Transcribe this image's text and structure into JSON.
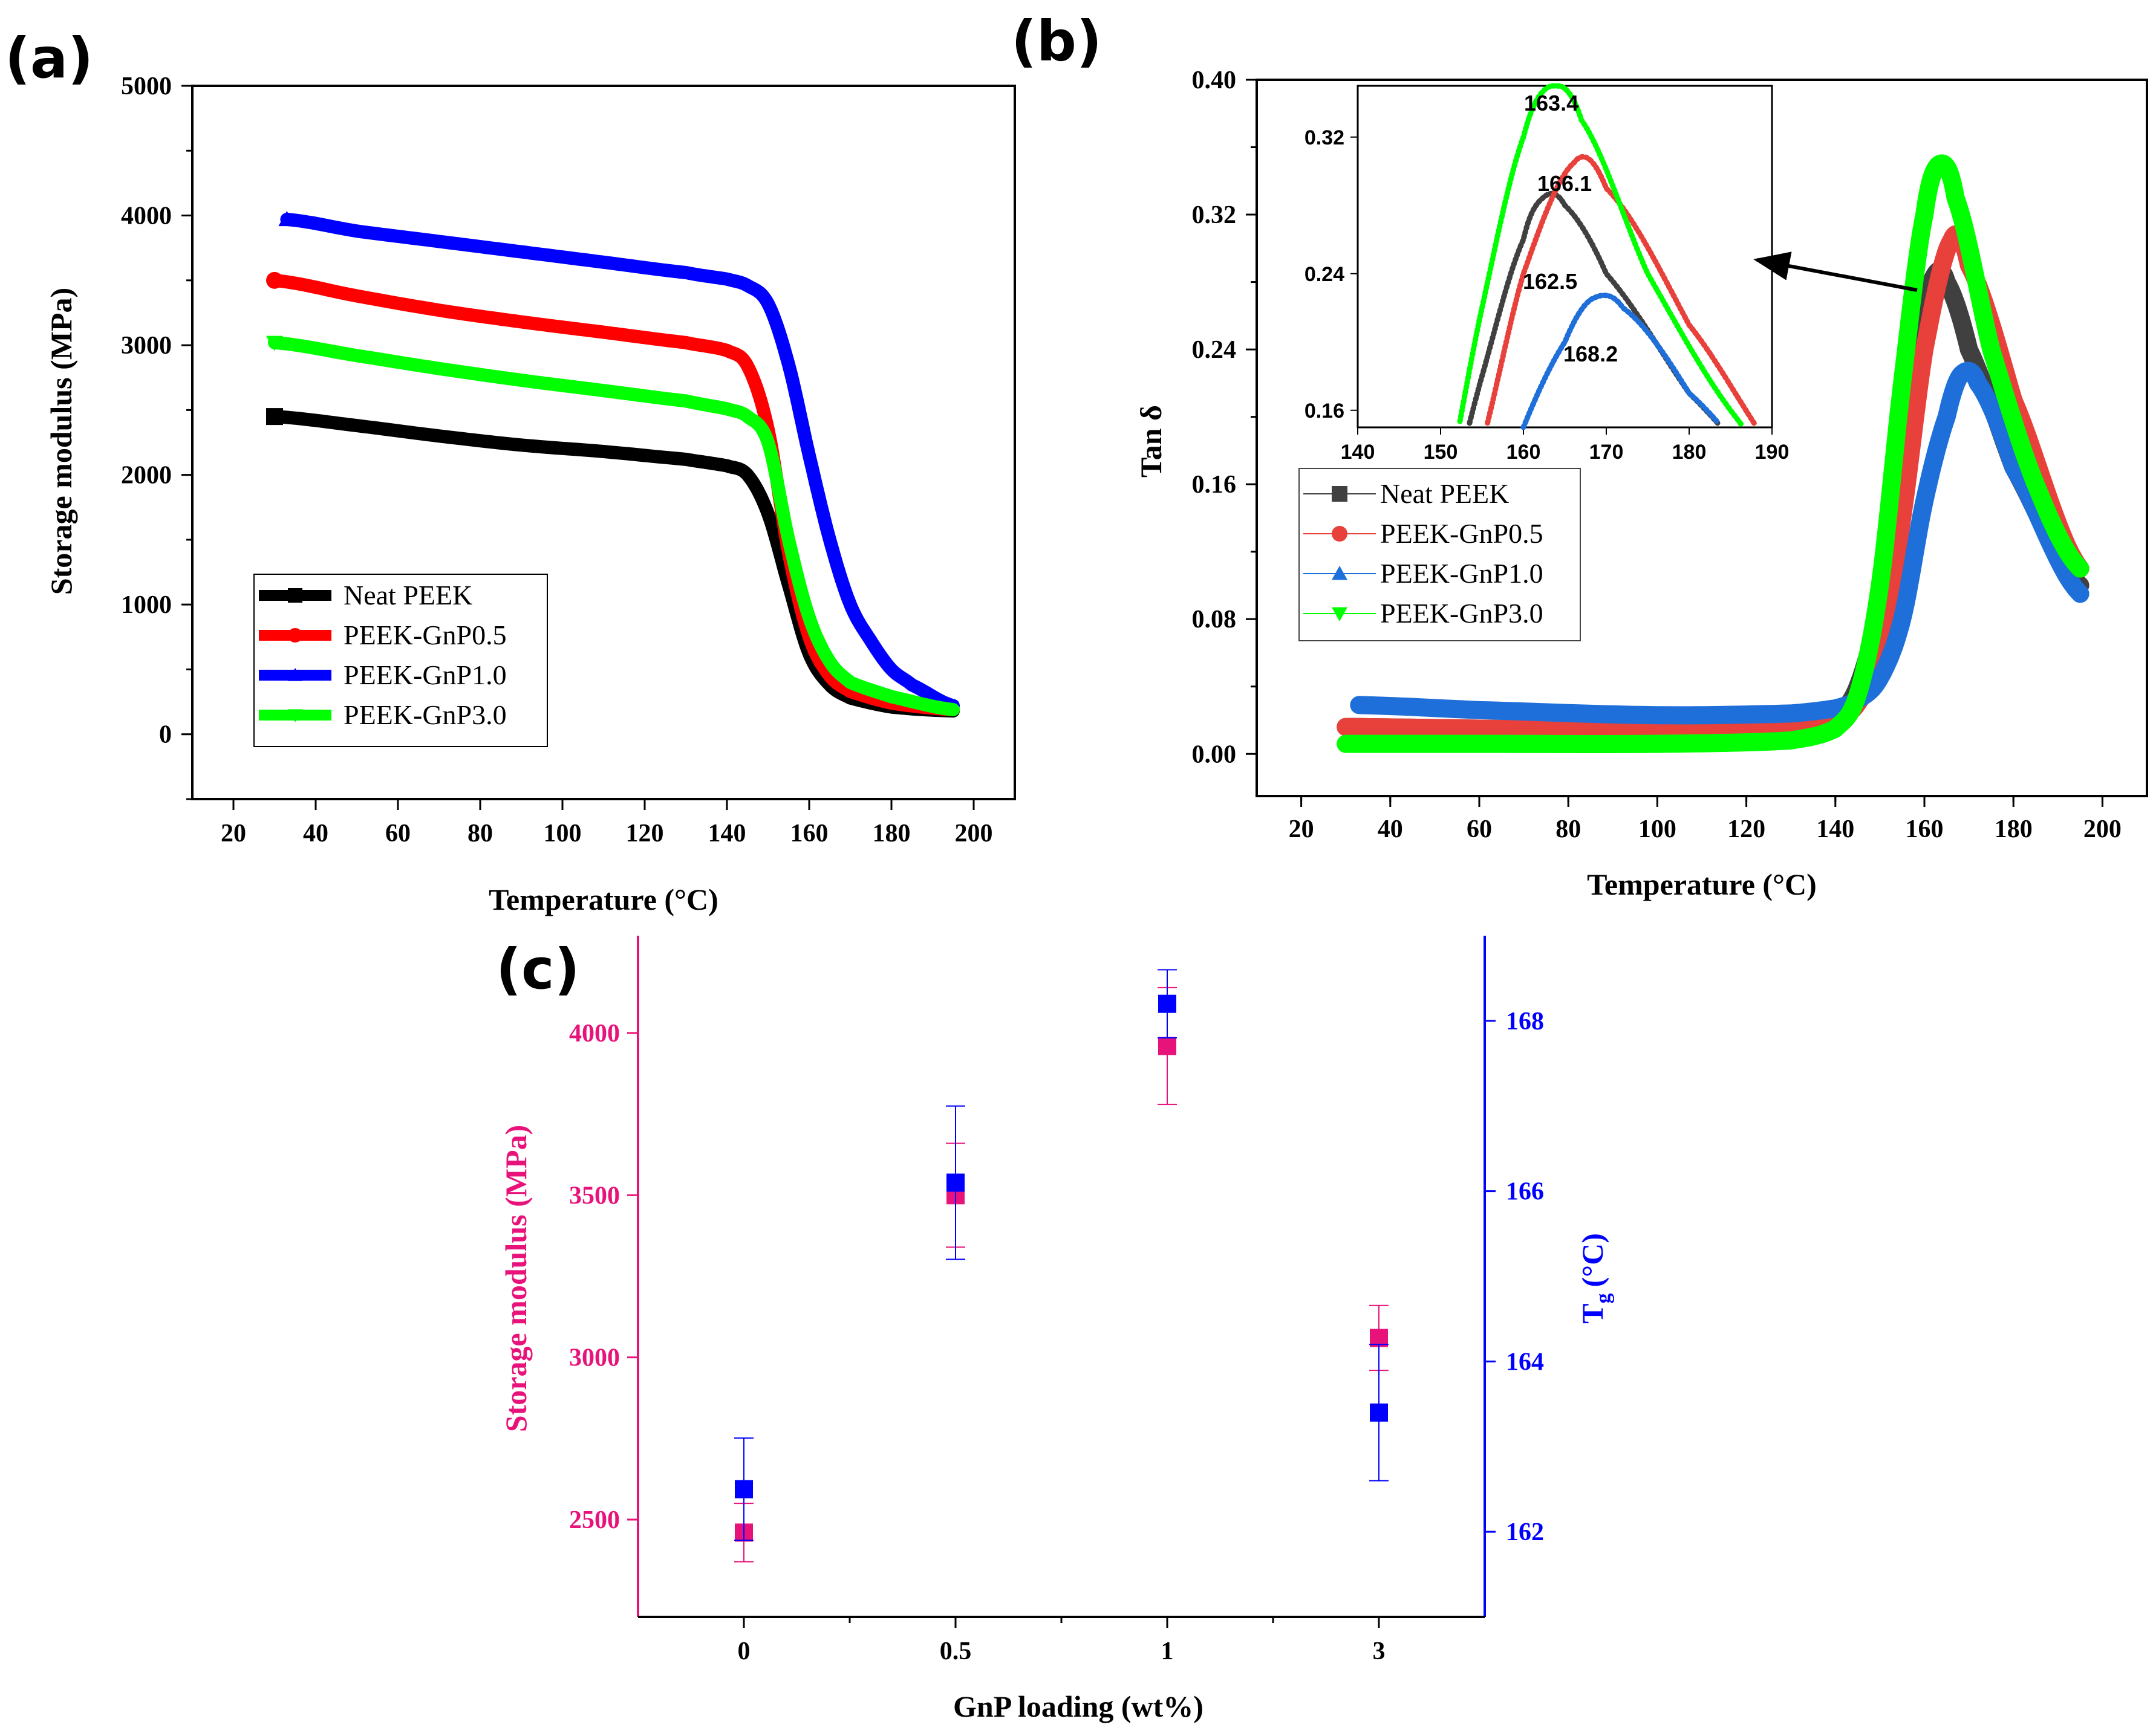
{
  "chart_data": [
    {
      "type": "line",
      "panel": "(a)",
      "xlabel": "Temperature (°C)",
      "ylabel": "Storage modulus (MPa)",
      "xlim": [
        10,
        210
      ],
      "ylim": [
        -500,
        5000
      ],
      "xticks": [
        20,
        40,
        60,
        80,
        100,
        120,
        140,
        160,
        180,
        200
      ],
      "yticks": [
        0,
        1000,
        2000,
        3000,
        4000,
        5000
      ],
      "legend_position": "bottom-left",
      "series": [
        {
          "name": "Neat PEEK",
          "color": "#000000",
          "marker": "square",
          "x": [
            30,
            50,
            70,
            90,
            110,
            130,
            140,
            145,
            150,
            155,
            160,
            165,
            170,
            180,
            195
          ],
          "y": [
            2450,
            2380,
            2300,
            2230,
            2180,
            2120,
            2070,
            2000,
            1700,
            1150,
            620,
            380,
            280,
            210,
            180
          ]
        },
        {
          "name": "PEEK-GnP0.5",
          "color": "#ff0000",
          "marker": "circle",
          "x": [
            30,
            50,
            70,
            90,
            110,
            130,
            140,
            145,
            150,
            155,
            160,
            165,
            170,
            180,
            195
          ],
          "y": [
            3500,
            3380,
            3270,
            3180,
            3100,
            3020,
            2960,
            2840,
            2350,
            1400,
            750,
            450,
            330,
            240,
            190
          ]
        },
        {
          "name": "PEEK-GnP1.0",
          "color": "#0000ff",
          "marker": "triangle-up",
          "x": [
            33,
            50,
            70,
            90,
            110,
            130,
            140,
            145,
            150,
            155,
            160,
            165,
            170,
            175,
            180,
            185,
            195
          ],
          "y": [
            3970,
            3880,
            3800,
            3720,
            3640,
            3560,
            3510,
            3460,
            3320,
            2850,
            2150,
            1500,
            1000,
            720,
            500,
            380,
            220
          ]
        },
        {
          "name": "PEEK-GnP3.0",
          "color": "#00ff00",
          "marker": "triangle-down",
          "x": [
            30,
            50,
            70,
            90,
            110,
            130,
            140,
            145,
            150,
            155,
            160,
            165,
            170,
            180,
            195
          ],
          "y": [
            3020,
            2920,
            2820,
            2730,
            2650,
            2570,
            2510,
            2450,
            2250,
            1500,
            900,
            560,
            400,
            290,
            190
          ]
        }
      ]
    },
    {
      "type": "line",
      "panel": "(b)",
      "xlabel": "Temperature (°C)",
      "ylabel": "Tan δ",
      "xlim": [
        10,
        210
      ],
      "ylim": [
        -0.025,
        0.4
      ],
      "xticks": [
        20,
        40,
        60,
        80,
        100,
        120,
        140,
        160,
        180,
        200
      ],
      "yticks": [
        0.0,
        0.08,
        0.16,
        0.24,
        0.32,
        0.4
      ],
      "ytick_labels": [
        "0.00",
        "0.08",
        "0.16",
        "0.24",
        "0.32",
        "0.40"
      ],
      "legend_position": "middle-left",
      "series": [
        {
          "name": "Neat PEEK",
          "color": "#404040",
          "marker": "square",
          "x": [
            30,
            60,
            100,
            130,
            140,
            145,
            150,
            155,
            160,
            162.5,
            165,
            170,
            180,
            195
          ],
          "y": [
            0.016,
            0.015,
            0.014,
            0.015,
            0.022,
            0.04,
            0.09,
            0.18,
            0.26,
            0.285,
            0.28,
            0.24,
            0.17,
            0.1
          ]
        },
        {
          "name": "PEEK-GnP0.5",
          "color": "#e8403a",
          "marker": "circle",
          "x": [
            30,
            60,
            100,
            130,
            140,
            145,
            150,
            155,
            160,
            166.1,
            170,
            180,
            195
          ],
          "y": [
            0.016,
            0.015,
            0.014,
            0.016,
            0.02,
            0.03,
            0.06,
            0.14,
            0.24,
            0.305,
            0.29,
            0.21,
            0.11
          ]
        },
        {
          "name": "PEEK-GnP1.0",
          "color": "#1e6fd9",
          "marker": "triangle-up",
          "x": [
            33,
            60,
            100,
            130,
            140,
            145,
            150,
            155,
            160,
            165,
            168.2,
            172,
            180,
            195
          ],
          "y": [
            0.029,
            0.026,
            0.023,
            0.024,
            0.027,
            0.032,
            0.045,
            0.08,
            0.15,
            0.2,
            0.225,
            0.22,
            0.17,
            0.095
          ]
        },
        {
          "name": "PEEK-GnP3.0",
          "color": "#00ff00",
          "marker": "triangle-down",
          "x": [
            30,
            60,
            100,
            130,
            140,
            145,
            150,
            155,
            160,
            163.4,
            167,
            175,
            185,
            195
          ],
          "y": [
            0.006,
            0.006,
            0.006,
            0.008,
            0.015,
            0.035,
            0.1,
            0.22,
            0.32,
            0.35,
            0.33,
            0.24,
            0.16,
            0.11
          ]
        }
      ],
      "inset": {
        "xlim": [
          140,
          190
        ],
        "ylim": [
          0.15,
          0.35
        ],
        "xticks": [
          140,
          150,
          160,
          170,
          180,
          190
        ],
        "yticks": [
          0.16,
          0.24,
          0.32
        ],
        "ytick_labels": [
          "0.16",
          "0.24",
          "0.32"
        ],
        "peak_labels": [
          "163.4",
          "166.1",
          "162.5",
          "168.2"
        ]
      }
    },
    {
      "type": "scatter",
      "panel": "(c)",
      "xlabel": "GnP loading (wt%)",
      "ylabel_left": "Storage modulus (MPa)",
      "ylabel_right": "Tg (°C)",
      "ylabel_right_main": "T",
      "ylabel_right_sub": "g",
      "ylabel_right_unit": "(°C)",
      "categories": [
        "0",
        "0.5",
        "1",
        "3"
      ],
      "ylim_left": [
        2200,
        4300
      ],
      "ylim_right": [
        161,
        169
      ],
      "yticks_left": [
        2500,
        3000,
        3500,
        4000
      ],
      "yticks_right": [
        162,
        164,
        166,
        168
      ],
      "series": [
        {
          "name": "Storage modulus",
          "axis": "left",
          "color": "#e8137a",
          "values": [
            2460,
            3500,
            3960,
            3060
          ],
          "errors": [
            90,
            160,
            180,
            100
          ]
        },
        {
          "name": "Tg",
          "axis": "right",
          "color": "#0000ff",
          "values": [
            162.5,
            166.1,
            168.2,
            163.4
          ],
          "errors": [
            0.6,
            0.9,
            0.4,
            0.8
          ]
        }
      ]
    }
  ]
}
